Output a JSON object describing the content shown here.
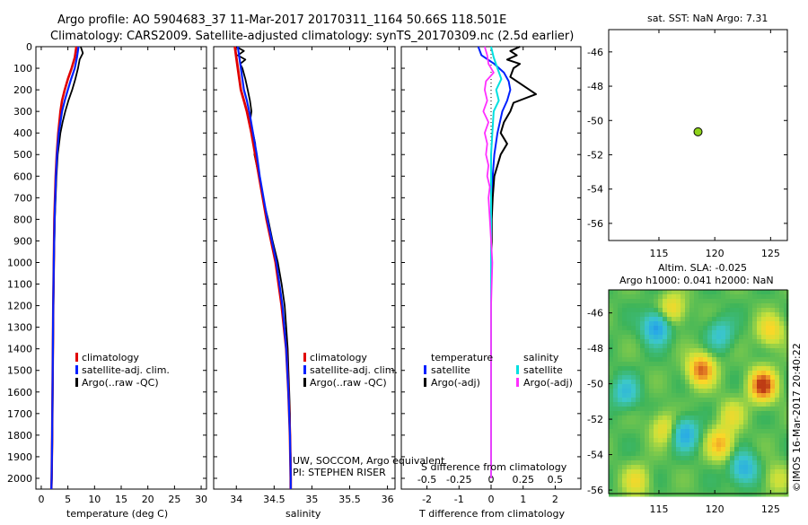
{
  "header": {
    "line1": "Argo profile: AO 5904683_37 11-Mar-2017 20170311_1164 50.66S 118.501E",
    "line2": "Climatology: CARS2009. Satellite-adjusted climatology: synTS_20170309.nc (2.5d earlier)"
  },
  "colors": {
    "climatology": "#e00000",
    "satellite": "#0020ff",
    "argo": "#000000",
    "salinity_sat": "#00e0e0",
    "salinity_argo": "#ff30ff",
    "marker": "#8ed21a"
  },
  "chart_data": [
    {
      "type": "line",
      "id": "temperature",
      "xlabel": "temperature (deg C)",
      "xlim": [
        -1,
        31
      ],
      "xticks": [
        "0",
        "5",
        "10",
        "15",
        "20",
        "25",
        "30"
      ],
      "ylim": [
        2050,
        0
      ],
      "yticks": [
        "0",
        "100",
        "200",
        "300",
        "400",
        "500",
        "600",
        "700",
        "800",
        "900",
        "1000",
        "1100",
        "1200",
        "1300",
        "1400",
        "1500",
        "1600",
        "1700",
        "1800",
        "1900",
        "2000"
      ],
      "legend": [
        "climatology",
        "satellite-adj. clim.",
        "Argo(..raw -QC)"
      ],
      "series": [
        {
          "name": "climatology",
          "depth": [
            0,
            50,
            100,
            150,
            200,
            250,
            300,
            400,
            500,
            600,
            800,
            1000,
            1200,
            1500,
            1800,
            2000,
            2050
          ],
          "values": [
            6.6,
            6.3,
            5.7,
            5.0,
            4.4,
            3.9,
            3.6,
            3.2,
            2.9,
            2.7,
            2.45,
            2.35,
            2.25,
            2.15,
            2.05,
            1.95,
            1.9
          ]
        },
        {
          "name": "satellite-adj. clim.",
          "depth": [
            0,
            50,
            100,
            150,
            200,
            250,
            300,
            400,
            500,
            600,
            800,
            1000,
            1200,
            1500,
            1800,
            2000,
            2050
          ],
          "values": [
            7.0,
            6.7,
            6.3,
            5.6,
            5.0,
            4.4,
            3.9,
            3.3,
            2.95,
            2.75,
            2.5,
            2.35,
            2.25,
            2.15,
            2.05,
            1.95,
            1.9
          ]
        },
        {
          "name": "Argo(..raw -QC)",
          "depth": [
            0,
            30,
            60,
            100,
            150,
            200,
            250,
            300,
            350,
            400,
            500,
            600,
            800,
            1000,
            1200,
            1500,
            1800,
            2000,
            2050
          ],
          "values": [
            7.4,
            7.8,
            7.2,
            6.9,
            6.4,
            5.8,
            5.1,
            4.5,
            4.0,
            3.6,
            3.1,
            2.85,
            2.55,
            2.4,
            2.3,
            2.2,
            2.1,
            2.0,
            1.95
          ]
        }
      ]
    },
    {
      "type": "line",
      "id": "salinity",
      "xlabel": "salinity",
      "xlim": [
        33.7,
        36.1
      ],
      "xticks": [
        "34",
        "34.5",
        "35",
        "35.5",
        "36"
      ],
      "ylim": [
        2050,
        0
      ],
      "legend": [
        "climatology",
        "satellite-adj. clim.",
        "Argo(..raw -QC)"
      ],
      "annotation": [
        "UW, SOCCOM, Argo equivalent",
        "PI: STEPHEN RISER"
      ],
      "series": [
        {
          "name": "climatology",
          "depth": [
            0,
            50,
            100,
            150,
            200,
            250,
            300,
            400,
            500,
            600,
            700,
            800,
            900,
            1000,
            1200,
            1400,
            1600,
            1800,
            2000,
            2050
          ],
          "values": [
            33.98,
            34.0,
            34.02,
            34.04,
            34.06,
            34.1,
            34.14,
            34.2,
            34.25,
            34.3,
            34.35,
            34.4,
            34.46,
            34.52,
            34.6,
            34.66,
            34.69,
            34.71,
            34.72,
            34.72
          ]
        },
        {
          "name": "satellite-adj. clim.",
          "depth": [
            0,
            50,
            100,
            150,
            200,
            250,
            300,
            400,
            500,
            600,
            700,
            800,
            900,
            1000,
            1200,
            1400,
            1600,
            1800,
            2000,
            2050
          ],
          "values": [
            34.02,
            34.04,
            34.06,
            34.08,
            34.1,
            34.14,
            34.17,
            34.22,
            34.27,
            34.31,
            34.36,
            34.41,
            34.47,
            34.53,
            34.61,
            34.66,
            34.69,
            34.71,
            34.72,
            34.72
          ]
        },
        {
          "name": "Argo(..raw -QC)",
          "depth": [
            0,
            20,
            40,
            60,
            80,
            100,
            150,
            200,
            250,
            300,
            350,
            400,
            450,
            500,
            600,
            700,
            800,
            900,
            1000,
            1100,
            1200,
            1300,
            1400,
            1500,
            1600,
            1700,
            1800,
            1900,
            2000
          ],
          "values": [
            34.0,
            34.1,
            34.02,
            34.12,
            34.05,
            34.08,
            34.12,
            34.15,
            34.18,
            34.2,
            34.18,
            34.22,
            34.25,
            34.24,
            34.3,
            34.35,
            34.42,
            34.48,
            34.55,
            34.6,
            34.64,
            34.66,
            34.68,
            34.69,
            34.7,
            34.71,
            34.71,
            34.72,
            34.72
          ]
        }
      ]
    },
    {
      "type": "line",
      "id": "difference",
      "xlabel": "T difference from climatology",
      "x2label": "S difference from climatology",
      "xlim": [
        -2.8,
        2.8
      ],
      "xticks": [
        "-2",
        "-1",
        "0",
        "1",
        "2"
      ],
      "x2ticks": [
        "-0.5",
        "-0.25",
        "0",
        "0.25",
        "0.5"
      ],
      "ylim": [
        2050,
        0
      ],
      "legend_headers": [
        "temperature",
        "salinity"
      ],
      "legend": [
        "satellite",
        "Argo(-adj)",
        "satellite",
        "Argo(-adj)"
      ],
      "series": [
        {
          "name": "temperature satellite",
          "depth": [
            0,
            40,
            80,
            120,
            160,
            200,
            250,
            300,
            400,
            500,
            600,
            700,
            800,
            900,
            1000,
            1200,
            1400,
            1600,
            1800,
            2000
          ],
          "values": [
            -0.4,
            -0.3,
            0.1,
            0.4,
            0.55,
            0.6,
            0.5,
            0.35,
            0.2,
            0.1,
            0.05,
            0.02,
            0.0,
            0.0,
            0.0,
            0.0,
            0.0,
            0.0,
            0.0,
            0.0
          ]
        },
        {
          "name": "temperature Argo(-adj)",
          "depth": [
            0,
            20,
            40,
            60,
            80,
            100,
            140,
            180,
            220,
            260,
            300,
            350,
            400,
            450,
            500,
            600,
            700,
            800,
            900,
            1000,
            1200,
            1400,
            1600,
            1800,
            2000
          ],
          "values": [
            0.9,
            0.6,
            0.8,
            0.5,
            0.9,
            0.7,
            0.6,
            1.0,
            1.4,
            0.7,
            0.6,
            0.4,
            0.3,
            0.5,
            0.3,
            0.1,
            0.05,
            0.02,
            0.02,
            0.0,
            0.0,
            0.0,
            0.0,
            0.0,
            0.0
          ]
        },
        {
          "name": "salinity satellite",
          "depth": [
            0,
            50,
            100,
            150,
            200,
            250,
            300,
            400,
            500,
            600,
            800,
            1000,
            1200,
            1400,
            1600,
            1800,
            2000
          ],
          "values": [
            0.0,
            0.02,
            0.05,
            0.08,
            0.04,
            0.06,
            0.02,
            0.01,
            0.0,
            0.0,
            0.0,
            0.0,
            0.0,
            0.0,
            0.0,
            0.0,
            0.0
          ]
        },
        {
          "name": "salinity Argo(-adj)",
          "depth": [
            0,
            40,
            80,
            120,
            160,
            200,
            250,
            300,
            350,
            400,
            450,
            500,
            550,
            600,
            650,
            700,
            800,
            900,
            1000,
            1200,
            1400,
            1600,
            1800,
            2000
          ],
          "values": [
            -0.05,
            -0.03,
            -0.02,
            0.02,
            -0.04,
            -0.05,
            -0.03,
            -0.06,
            -0.02,
            -0.05,
            -0.03,
            -0.04,
            -0.02,
            -0.03,
            -0.01,
            -0.02,
            -0.01,
            0.0,
            0.01,
            0.0,
            0.0,
            0.0,
            0.0,
            0.0
          ]
        }
      ]
    },
    {
      "type": "scatter",
      "id": "map_sst",
      "title": "sat. SST: NaN Argo: 7.31",
      "xlim": [
        110.5,
        126.5
      ],
      "ylim": [
        -57,
        -44.7
      ],
      "xticks": [
        "115",
        "120",
        "125"
      ],
      "yticks": [
        "-46",
        "-48",
        "-50",
        "-52",
        "-54",
        "-56"
      ],
      "points": [
        {
          "lon": 118.5,
          "lat": -50.66
        }
      ]
    },
    {
      "type": "heatmap",
      "id": "map_sla",
      "title_line1": "Altim. SLA: -0.025",
      "title_line2": "Argo h1000: 0.041 h2000: NaN",
      "xlim": [
        110.5,
        126.5
      ],
      "ylim": [
        -56.2,
        -44.7
      ],
      "xticks": [
        "115",
        "120",
        "125"
      ],
      "yticks": [
        "-46",
        "-48",
        "-50",
        "-52",
        "-54",
        "-56"
      ],
      "blobs": [
        {
          "lon": 124.3,
          "lat": -50.1,
          "amp": 1.0
        },
        {
          "lon": 118.8,
          "lat": -49.2,
          "amp": 0.85
        },
        {
          "lon": 120.5,
          "lat": -53.4,
          "amp": 0.6
        },
        {
          "lon": 125.0,
          "lat": -47.0,
          "amp": 0.5
        },
        {
          "lon": 115.5,
          "lat": -52.5,
          "amp": 0.45
        },
        {
          "lon": 121.5,
          "lat": -51.8,
          "amp": 0.35
        },
        {
          "lon": 116.2,
          "lat": -45.8,
          "amp": 0.5
        },
        {
          "lon": 113.0,
          "lat": -55.5,
          "amp": 0.4
        },
        {
          "lon": 114.8,
          "lat": -46.8,
          "amp": -0.75
        },
        {
          "lon": 117.3,
          "lat": -52.8,
          "amp": -0.65
        },
        {
          "lon": 122.6,
          "lat": -54.8,
          "amp": -0.6
        },
        {
          "lon": 112.0,
          "lat": -50.5,
          "amp": -0.45
        },
        {
          "lon": 120.5,
          "lat": -47.2,
          "amp": -0.4
        },
        {
          "lon": 125.5,
          "lat": -55.4,
          "amp": 0.3
        }
      ]
    }
  ],
  "footer": {
    "credit": "©IMOS 16-Mar-2017 20:40:22"
  }
}
